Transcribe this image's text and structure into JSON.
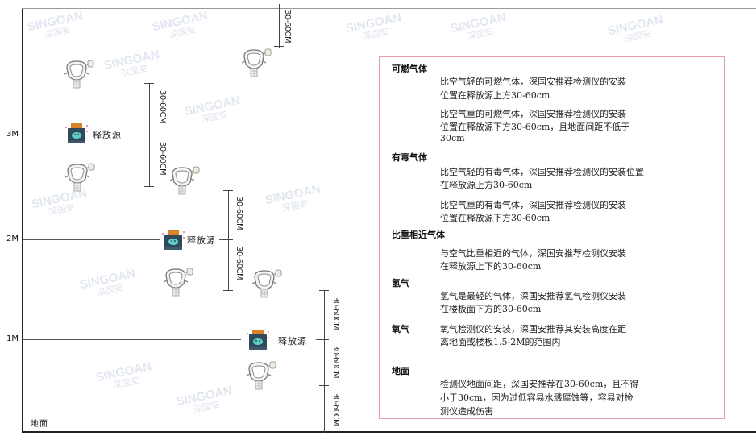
{
  "watermark": {
    "brand": "SINGOAN",
    "cn": "深国安"
  },
  "levels": {
    "m3": "3M",
    "m2": "2M",
    "m1": "1M",
    "ground": "地面"
  },
  "source_label": "释放源",
  "dimension_label": "30-60CM",
  "info": {
    "sections": [
      {
        "heading": "可燃气体",
        "lines": [
          "比空气轻的可燃气体，深国安推荐检测仪的安装",
          "位置在释放源上方30-60cm",
          "比空气重的可燃气体，深国安推荐检测仪的安装",
          "位置在释放源下方30-60cm，且地面间距不低于",
          "30cm"
        ]
      },
      {
        "heading": "有毒气体",
        "lines": [
          "比空气轻的有毒气体，深国安推荐检测仪的安装位置",
          "在释放源上方30-60cm",
          "比空气重的有毒气体，深国安推荐检测仪的安装",
          "位置在释放源下方30-60cm"
        ]
      },
      {
        "heading": "比重相近气体",
        "lines": [
          "与空气比重相近的气体，深国安推荐检测仪安装",
          "在释放源上下的30-60cm"
        ]
      },
      {
        "heading": "氢气",
        "lines": [
          "氢气是最轻的气体，深国安推荐氢气检测仪安装",
          "在楼板面下方的30-60cm"
        ]
      },
      {
        "heading": "氧气",
        "lines": [
          "氧气检测仪的安装，深国安推荐其安装高度在距",
          "离地面或楼板1.5-2M的范围内"
        ]
      },
      {
        "heading": "地面",
        "lines": [
          "检测仪地面间距，深国安推荐在30-60cm，且不得",
          "小于30cm，因为过低容易水溅腐蚀等，容易对检",
          "测仪造成伤害"
        ]
      }
    ]
  },
  "colors": {
    "frame": "#333333",
    "box_border": "#e8a0a8",
    "source_body": "#2f4a5a",
    "source_cap": "#d9822b",
    "source_face": "#5fd0c8"
  }
}
